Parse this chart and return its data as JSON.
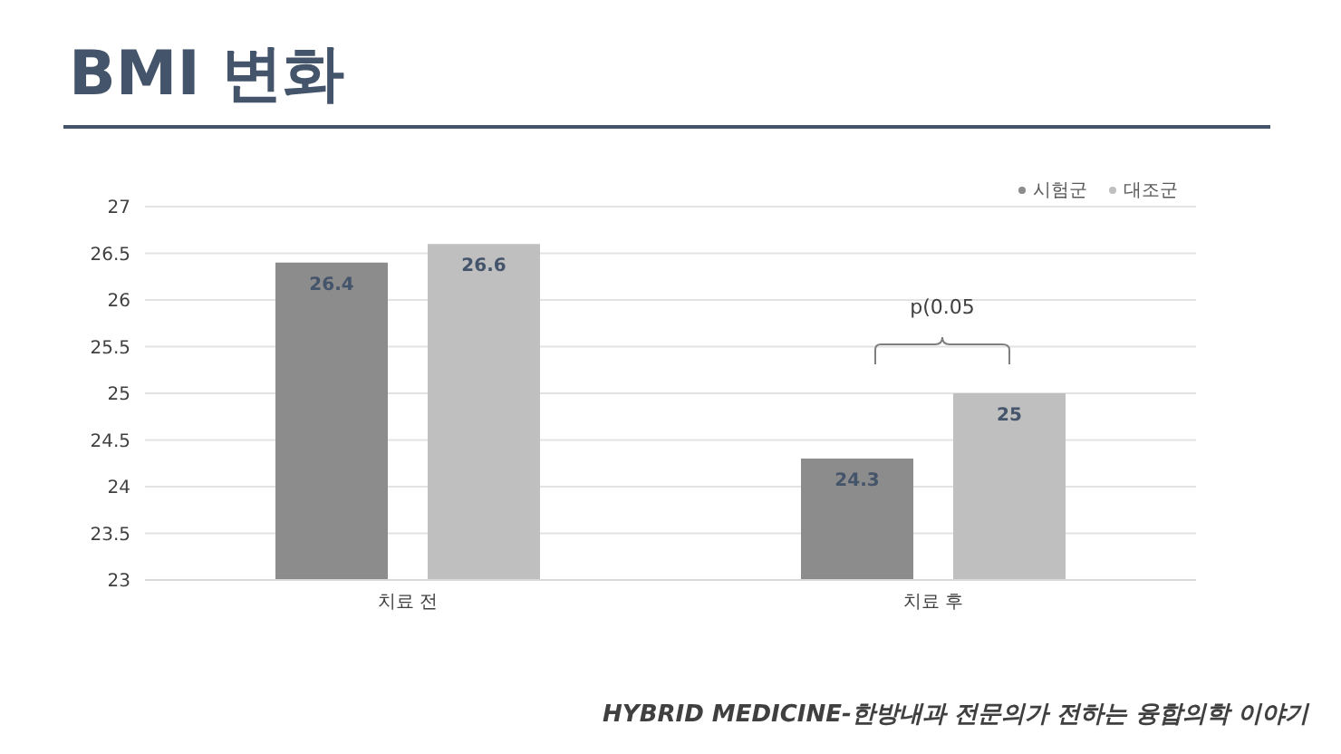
{
  "chart_data": {
    "type": "bar",
    "title": "BMI 변화",
    "categories": [
      "치료 전",
      "치료 후"
    ],
    "series": [
      {
        "name": "시험군",
        "color": "#8c8c8c",
        "values": [
          26.4,
          24.3
        ]
      },
      {
        "name": "대조군",
        "color": "#bfbfbf",
        "values": [
          26.6,
          25
        ]
      }
    ],
    "ylim": [
      23,
      27
    ],
    "yticks": [
      23,
      23.5,
      24,
      24.5,
      25,
      25.5,
      26,
      26.5,
      27
    ],
    "grid": "y",
    "legend": "top right",
    "data_labels": true,
    "annotations": [
      "p(0.05",
      "HYBRID MEDICINE-한방내과 전문의가 전하는 융합의학 이야기"
    ]
  }
}
